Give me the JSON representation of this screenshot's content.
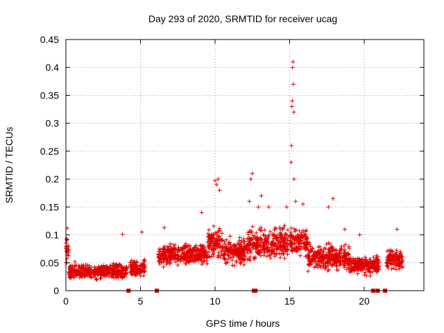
{
  "chart_data": {
    "type": "scatter",
    "title": "Day 293 of 2020, SRMTID for receiver ucag",
    "xlabel": "GPS time / hours",
    "ylabel": "SRMTID / TECUs",
    "xlim": [
      0,
      24
    ],
    "ylim": [
      0,
      0.45
    ],
    "x_ticks": [
      0,
      5,
      10,
      15,
      20
    ],
    "y_ticks": [
      0,
      0.05,
      0.1,
      0.15,
      0.2,
      0.25,
      0.3,
      0.35,
      0.4,
      0.45
    ],
    "x_tick_labels": [
      "0",
      "5",
      "10",
      "15",
      "20"
    ],
    "y_tick_labels": [
      "0",
      "0.05",
      "0.1",
      "0.15",
      "0.2",
      "0.25",
      "0.3",
      "0.35",
      "0.4",
      "0.45"
    ],
    "marker": "+",
    "color": "#e00000",
    "grid": true,
    "gap_markers_x": [
      4.2,
      6.1,
      12.6,
      12.7,
      20.6,
      20.9,
      21.4
    ],
    "series_envelope": [
      {
        "x0": 0.0,
        "x1": 0.2,
        "base": 0.07,
        "spread": 0.035
      },
      {
        "x0": 0.2,
        "x1": 4.1,
        "base": 0.035,
        "spread": 0.018
      },
      {
        "x0": 4.3,
        "x1": 5.3,
        "base": 0.04,
        "spread": 0.02
      },
      {
        "x0": 6.2,
        "x1": 9.5,
        "base": 0.065,
        "spread": 0.025
      },
      {
        "x0": 9.5,
        "x1": 10.5,
        "base": 0.085,
        "spread": 0.035
      },
      {
        "x0": 10.5,
        "x1": 12.2,
        "base": 0.07,
        "spread": 0.03
      },
      {
        "x0": 12.2,
        "x1": 14.9,
        "base": 0.085,
        "spread": 0.04
      },
      {
        "x0": 15.0,
        "x1": 16.2,
        "base": 0.09,
        "spread": 0.035
      },
      {
        "x0": 16.2,
        "x1": 19.0,
        "base": 0.06,
        "spread": 0.03
      },
      {
        "x0": 19.0,
        "x1": 21.0,
        "base": 0.045,
        "spread": 0.02
      },
      {
        "x0": 21.5,
        "x1": 22.6,
        "base": 0.055,
        "spread": 0.025
      }
    ],
    "spikes": [
      {
        "x": 0.1,
        "y": 0.112
      },
      {
        "x": 3.8,
        "y": 0.101
      },
      {
        "x": 5.1,
        "y": 0.105
      },
      {
        "x": 6.6,
        "y": 0.113
      },
      {
        "x": 9.1,
        "y": 0.14
      },
      {
        "x": 10.0,
        "y": 0.197
      },
      {
        "x": 10.1,
        "y": 0.19
      },
      {
        "x": 10.2,
        "y": 0.2
      },
      {
        "x": 10.3,
        "y": 0.18
      },
      {
        "x": 12.3,
        "y": 0.16
      },
      {
        "x": 12.4,
        "y": 0.2
      },
      {
        "x": 12.5,
        "y": 0.21
      },
      {
        "x": 12.9,
        "y": 0.15
      },
      {
        "x": 13.1,
        "y": 0.17
      },
      {
        "x": 13.6,
        "y": 0.15
      },
      {
        "x": 14.8,
        "y": 0.15
      },
      {
        "x": 15.1,
        "y": 0.23
      },
      {
        "x": 15.12,
        "y": 0.26
      },
      {
        "x": 15.15,
        "y": 0.33
      },
      {
        "x": 15.18,
        "y": 0.34
      },
      {
        "x": 15.2,
        "y": 0.4
      },
      {
        "x": 15.22,
        "y": 0.41
      },
      {
        "x": 15.25,
        "y": 0.37
      },
      {
        "x": 15.28,
        "y": 0.32
      },
      {
        "x": 15.3,
        "y": 0.2
      },
      {
        "x": 15.4,
        "y": 0.16
      },
      {
        "x": 15.9,
        "y": 0.155
      },
      {
        "x": 17.6,
        "y": 0.15
      },
      {
        "x": 17.9,
        "y": 0.165
      },
      {
        "x": 18.7,
        "y": 0.11
      },
      {
        "x": 19.7,
        "y": 0.1
      },
      {
        "x": 22.2,
        "y": 0.11
      }
    ]
  }
}
